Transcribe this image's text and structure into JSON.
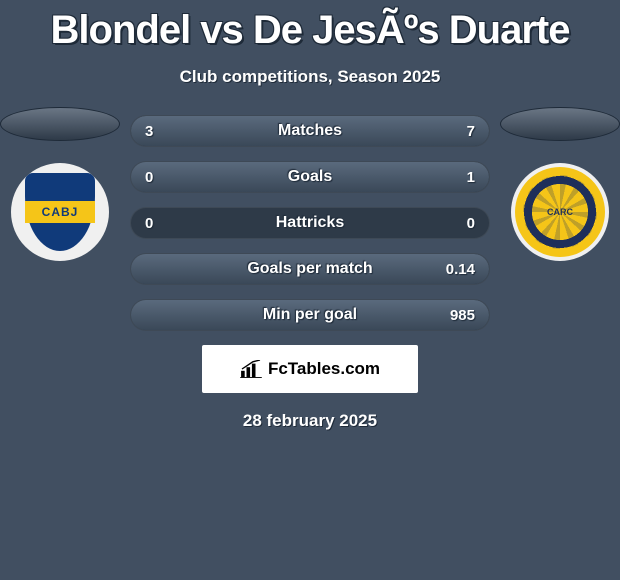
{
  "title": "Blondel vs De JesÃºs Duarte",
  "subtitle": "Club competitions, Season 2025",
  "date": "28 february 2025",
  "logo_text": "FcTables.com",
  "colors": {
    "page_bg": "#414f61",
    "row_bg": "#2e3a48",
    "fill_top": "#5a6a7d",
    "fill_bottom": "#3a4858",
    "text": "#ffffff",
    "shadow": "#1e2a38"
  },
  "left_team": {
    "code": "CABJ",
    "shield_bg": "#103a7a",
    "band_bg": "#f5c518"
  },
  "right_team": {
    "code": "CARC",
    "ring_c1": "#f5c518",
    "ring_c2": "#1e2f5a"
  },
  "stats": [
    {
      "label": "Matches",
      "left_val": "3",
      "right_val": "7",
      "left_pct": 30,
      "right_pct": 70
    },
    {
      "label": "Goals",
      "left_val": "0",
      "right_val": "1",
      "left_pct": 0,
      "right_pct": 100
    },
    {
      "label": "Hattricks",
      "left_val": "0",
      "right_val": "0",
      "left_pct": 0,
      "right_pct": 0
    },
    {
      "label": "Goals per match",
      "left_val": "",
      "right_val": "0.14",
      "left_pct": 0,
      "right_pct": 100
    },
    {
      "label": "Min per goal",
      "left_val": "",
      "right_val": "985",
      "left_pct": 0,
      "right_pct": 100
    }
  ]
}
